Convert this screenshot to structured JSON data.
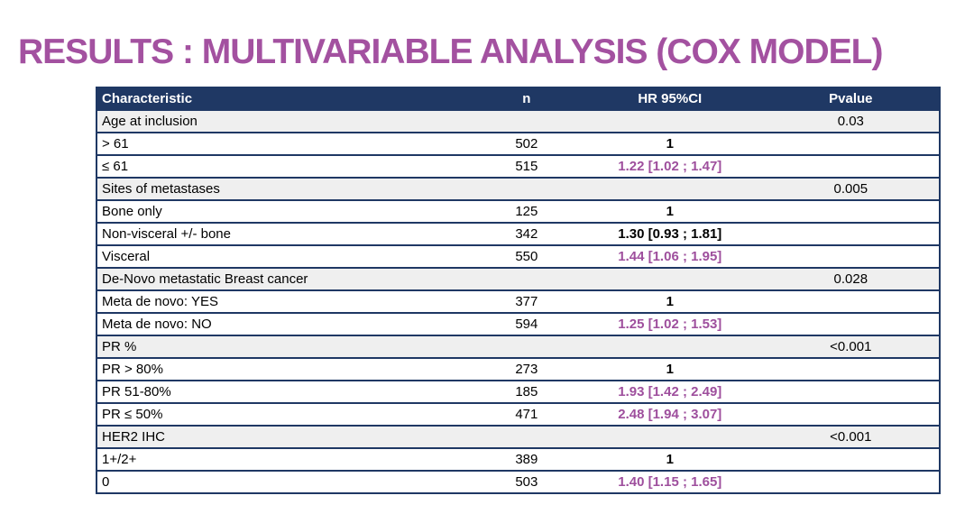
{
  "slide": {
    "title": "RESULTS : MULTIVARIABLE ANALYSIS (COX MODEL)"
  },
  "colors": {
    "title_purple": "#A351A0",
    "header_navy": "#1F3864",
    "significant_purple": "#9E4F9D",
    "category_row_gray": "#EFEFEF",
    "border_navy": "#1F3864"
  },
  "table": {
    "headers": [
      "Characteristic",
      "n",
      "HR 95%CI",
      "Pvalue"
    ],
    "rows": [
      {
        "type": "category",
        "label": "Age at inclusion",
        "n": "",
        "hr": "",
        "pvalue": "0.03",
        "significant": false
      },
      {
        "type": "data",
        "label": "> 61",
        "n": "502",
        "hr": "1",
        "pvalue": "",
        "significant": false
      },
      {
        "type": "data",
        "label": "≤ 61",
        "n": "515",
        "hr": "1.22 [1.02 ; 1.47]",
        "pvalue": "",
        "significant": true
      },
      {
        "type": "category",
        "label": "Sites of metastases",
        "n": "",
        "hr": "",
        "pvalue": "0.005",
        "significant": false
      },
      {
        "type": "data",
        "label": "Bone only",
        "n": "125",
        "hr": "1",
        "pvalue": "",
        "significant": false
      },
      {
        "type": "data",
        "label": "Non-visceral +/- bone",
        "n": "342",
        "hr": "1.30 [0.93 ; 1.81]",
        "pvalue": "",
        "significant": false
      },
      {
        "type": "data",
        "label": "Visceral",
        "n": "550",
        "hr": "1.44 [1.06 ; 1.95]",
        "pvalue": "",
        "significant": true
      },
      {
        "type": "category",
        "label": "De-Novo metastatic Breast cancer",
        "n": "",
        "hr": "",
        "pvalue": "0.028",
        "significant": false
      },
      {
        "type": "data",
        "label": "Meta de novo: YES",
        "n": "377",
        "hr": "1",
        "pvalue": "",
        "significant": false
      },
      {
        "type": "data",
        "label": "Meta de novo: NO",
        "n": "594",
        "hr": "1.25 [1.02 ; 1.53]",
        "pvalue": "",
        "significant": true
      },
      {
        "type": "category",
        "label": "PR %",
        "n": "",
        "hr": "",
        "pvalue": "<0.001",
        "significant": false
      },
      {
        "type": "data",
        "label": "PR > 80%",
        "n": "273",
        "hr": "1",
        "pvalue": "",
        "significant": false
      },
      {
        "type": "data",
        "label": "PR 51-80%",
        "n": "185",
        "hr": "1.93 [1.42 ; 2.49]",
        "pvalue": "",
        "significant": true
      },
      {
        "type": "data",
        "label": "PR ≤ 50%",
        "n": "471",
        "hr": "2.48 [1.94 ; 3.07]",
        "pvalue": "",
        "significant": true
      },
      {
        "type": "category",
        "label": "HER2 IHC",
        "n": "",
        "hr": "",
        "pvalue": "<0.001",
        "significant": false
      },
      {
        "type": "data",
        "label": "1+/2+",
        "n": "389",
        "hr": "1",
        "pvalue": "",
        "significant": false
      },
      {
        "type": "data",
        "label": "0",
        "n": "503",
        "hr": "1.40 [1.15 ; 1.65]",
        "pvalue": "",
        "significant": true
      }
    ]
  }
}
